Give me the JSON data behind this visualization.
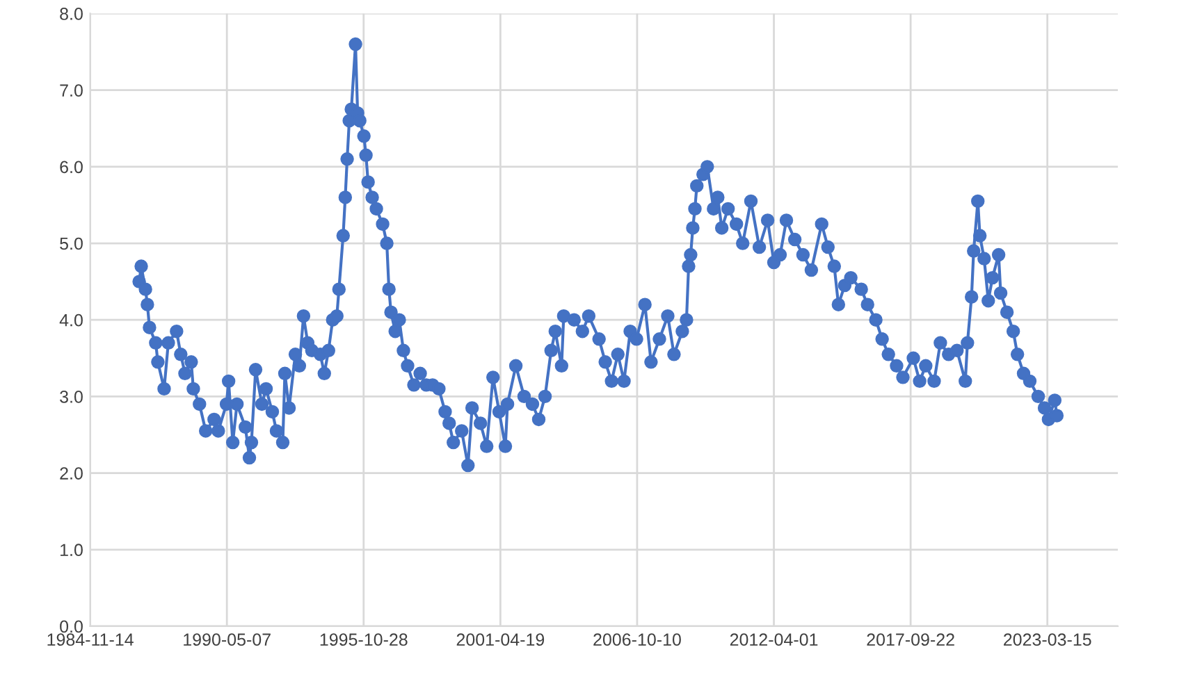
{
  "chart_data": {
    "type": "line",
    "color": "#4472c4",
    "marker": "circle",
    "line_style": "solid",
    "grid": true,
    "legend": false,
    "x": [
      "1986-11",
      "1986-12",
      "1987-02",
      "1987-03",
      "1987-04",
      "1987-07",
      "1987-08",
      "1987-11",
      "1988-01",
      "1988-05",
      "1988-07",
      "1988-09",
      "1988-12",
      "1989-01",
      "1989-04",
      "1989-07",
      "1989-11",
      "1990-01",
      "1990-05",
      "1990-06",
      "1990-08",
      "1990-10",
      "1991-02",
      "1991-04",
      "1991-05",
      "1991-07",
      "1991-10",
      "1991-12",
      "1992-03",
      "1992-05",
      "1992-08",
      "1992-09",
      "1992-11",
      "1993-02",
      "1993-04",
      "1993-06",
      "1993-08",
      "1993-10",
      "1994-02",
      "1994-04",
      "1994-06",
      "1994-08",
      "1994-10",
      "1994-11",
      "1995-01",
      "1995-02",
      "1995-03",
      "1995-04",
      "1995-05",
      "1995-07",
      "1995-08",
      "1995-09",
      "1995-11",
      "1995-12",
      "1996-01",
      "1996-03",
      "1996-05",
      "1996-08",
      "1996-10",
      "1996-11",
      "1996-12",
      "1997-02",
      "1997-04",
      "1997-06",
      "1997-08",
      "1997-11",
      "1998-02",
      "1998-05",
      "1998-08",
      "1998-11",
      "1999-02",
      "1999-04",
      "1999-06",
      "1999-10",
      "2000-01",
      "2000-03",
      "2000-07",
      "2000-10",
      "2001-01",
      "2001-04",
      "2001-07",
      "2001-08",
      "2001-12",
      "2002-04",
      "2002-08",
      "2002-11",
      "2003-02",
      "2003-05",
      "2003-07",
      "2003-10",
      "2003-11",
      "2004-04",
      "2004-08",
      "2004-11",
      "2005-04",
      "2005-07",
      "2005-10",
      "2006-01",
      "2006-04",
      "2006-07",
      "2006-10",
      "2007-02",
      "2007-05",
      "2007-09",
      "2008-01",
      "2008-04",
      "2008-08",
      "2008-10",
      "2008-11",
      "2008-12",
      "2009-01",
      "2009-02",
      "2009-03",
      "2009-06",
      "2009-08",
      "2009-11",
      "2010-01",
      "2010-03",
      "2010-06",
      "2010-10",
      "2011-01",
      "2011-05",
      "2011-09",
      "2012-01",
      "2012-04",
      "2012-07",
      "2012-10",
      "2013-02",
      "2013-06",
      "2013-10",
      "2014-03",
      "2014-06",
      "2014-09",
      "2014-11",
      "2015-02",
      "2015-05",
      "2015-10",
      "2016-01",
      "2016-05",
      "2016-08",
      "2016-11",
      "2017-03",
      "2017-06",
      "2017-11",
      "2018-02",
      "2018-05",
      "2018-09",
      "2018-12",
      "2019-04",
      "2019-08",
      "2019-12",
      "2020-01",
      "2020-03",
      "2020-04",
      "2020-06",
      "2020-07",
      "2020-09",
      "2020-11",
      "2021-01",
      "2021-04",
      "2021-05",
      "2021-08",
      "2021-11",
      "2022-01",
      "2022-04",
      "2022-07",
      "2022-11",
      "2023-02",
      "2023-04",
      "2023-07",
      "2023-08"
    ],
    "values": [
      4.5,
      4.7,
      4.4,
      4.2,
      3.9,
      3.7,
      3.45,
      3.1,
      3.7,
      3.85,
      3.55,
      3.3,
      3.45,
      3.1,
      2.9,
      2.55,
      2.7,
      2.55,
      2.9,
      3.2,
      2.4,
      2.9,
      2.6,
      2.2,
      2.4,
      3.35,
      2.9,
      3.1,
      2.8,
      2.55,
      2.4,
      3.3,
      2.85,
      3.55,
      3.4,
      4.05,
      3.7,
      3.6,
      3.55,
      3.3,
      3.6,
      4.0,
      4.05,
      4.4,
      5.1,
      5.6,
      6.1,
      6.6,
      6.75,
      7.6,
      6.7,
      6.6,
      6.4,
      6.15,
      5.8,
      5.6,
      5.45,
      5.25,
      5.0,
      4.4,
      4.1,
      3.85,
      4.0,
      3.6,
      3.4,
      3.15,
      3.3,
      3.15,
      3.15,
      3.1,
      2.8,
      2.65,
      2.4,
      2.55,
      2.1,
      2.85,
      2.65,
      2.35,
      3.25,
      2.8,
      2.35,
      2.9,
      3.4,
      3.0,
      2.9,
      2.7,
      3.0,
      3.6,
      3.85,
      3.4,
      4.05,
      4.0,
      3.85,
      4.05,
      3.75,
      3.45,
      3.2,
      3.55,
      3.2,
      3.85,
      3.75,
      4.2,
      3.45,
      3.75,
      4.05,
      3.55,
      3.85,
      4.0,
      4.7,
      4.85,
      5.2,
      5.45,
      5.75,
      5.9,
      6.0,
      5.45,
      5.6,
      5.2,
      5.45,
      5.25,
      5.0,
      5.55,
      4.95,
      5.3,
      4.75,
      4.85,
      5.3,
      5.05,
      4.85,
      4.65,
      5.25,
      4.95,
      4.7,
      4.2,
      4.45,
      4.55,
      4.4,
      4.2,
      4.0,
      3.75,
      3.55,
      3.4,
      3.25,
      3.5,
      3.2,
      3.4,
      3.2,
      3.7,
      3.55,
      3.6,
      3.2,
      3.7,
      4.3,
      4.9,
      5.55,
      5.1,
      4.8,
      4.25,
      4.55,
      4.85,
      4.35,
      4.1,
      3.85,
      3.55,
      3.3,
      3.2,
      3.0,
      2.85,
      2.7,
      2.95,
      2.75
    ],
    "xlim": [
      "1984-11-14",
      "2026-01-09"
    ],
    "xticks": [
      "1984-11-14",
      "1990-05-07",
      "1995-10-28",
      "2001-04-19",
      "2006-10-10",
      "2012-04-01",
      "2017-09-22",
      "2023-03-15"
    ],
    "ylim": [
      0,
      8
    ],
    "yticks": [
      {
        "value": 0,
        "label": "0.0"
      },
      {
        "value": 1,
        "label": "1.0"
      },
      {
        "value": 2,
        "label": "2.0"
      },
      {
        "value": 3,
        "label": "3.0"
      },
      {
        "value": 4,
        "label": "4.0"
      },
      {
        "value": 5,
        "label": "5.0"
      },
      {
        "value": 6,
        "label": "6.0"
      },
      {
        "value": 7,
        "label": "7.0"
      },
      {
        "value": 8,
        "label": "8.0"
      }
    ]
  }
}
